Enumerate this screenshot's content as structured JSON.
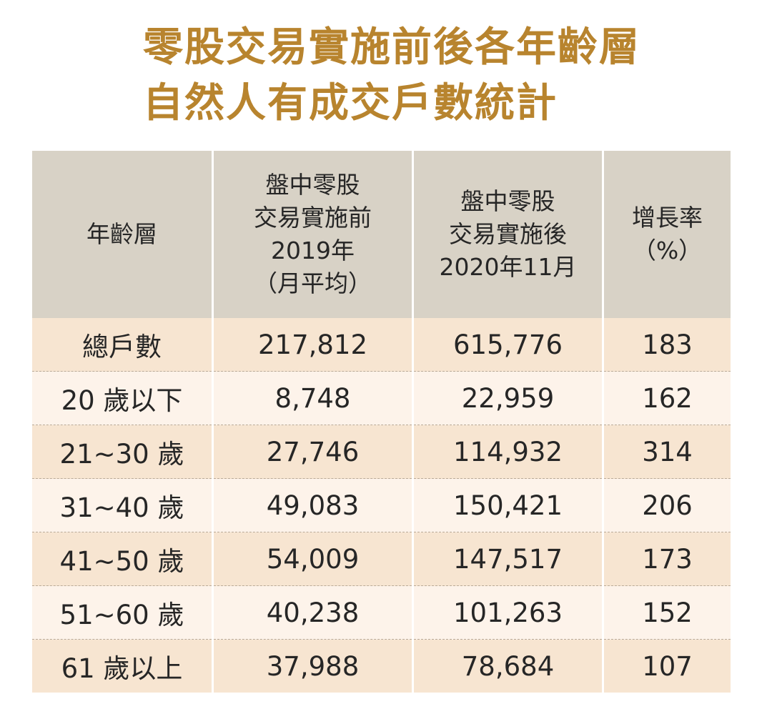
{
  "title": {
    "line1": "零股交易實施前後各年齡層",
    "line2": "自然人有成交戶數統計"
  },
  "table": {
    "headers": [
      {
        "lines": [
          "年齡層"
        ]
      },
      {
        "lines": [
          "盤中零股",
          "交易實施前",
          "2019年",
          "（月平均）"
        ]
      },
      {
        "lines": [
          "盤中零股",
          "交易實施後",
          "2020年11月"
        ]
      },
      {
        "lines": [
          "增長率",
          "（%）"
        ]
      }
    ],
    "rows": [
      [
        "總戶數",
        "217,812",
        "615,776",
        "183"
      ],
      [
        "20 歲以下",
        "8,748",
        "22,959",
        "162"
      ],
      [
        "21~30 歲",
        "27,746",
        "114,932",
        "314"
      ],
      [
        "31~40 歲",
        "49,083",
        "150,421",
        "206"
      ],
      [
        "41~50 歲",
        "54,009",
        "147,517",
        "173"
      ],
      [
        "51~60 歲",
        "40,238",
        "101,263",
        "152"
      ],
      [
        "61 歲以上",
        "37,988",
        "78,684",
        "107"
      ]
    ]
  },
  "colors": {
    "title": "#b8842e",
    "header_bg": "#d8d2c6",
    "row_odd": "#f7e5d1",
    "row_even": "#fdf3ea"
  }
}
